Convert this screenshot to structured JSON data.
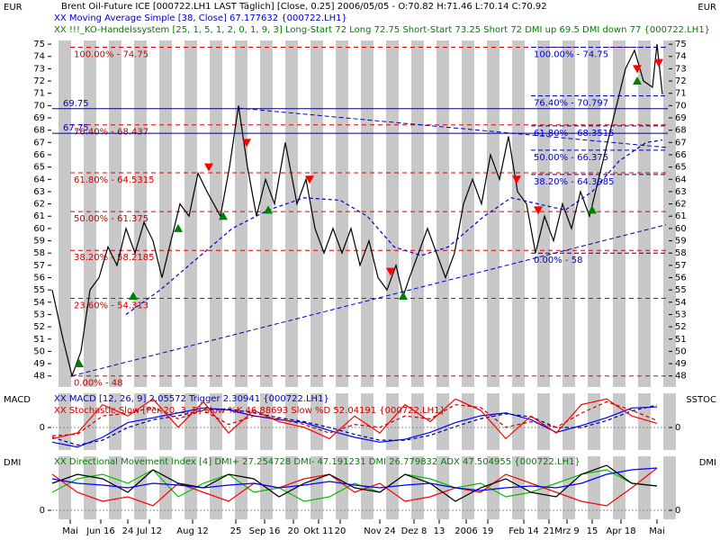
{
  "chart_data": [
    {
      "type": "line",
      "title": "Brent Oil-Future  ICE [000722.LH1 LAST Täglich] [Close, 0.25] 2006/05/05 - O:70.82 H:71.46 L:70.14 C:70.92",
      "legend_texts": [
        "XX Moving Average Simple [38, Close] 67.177632 {000722.LH1}",
        "XX !!!_KO-Handelssystem [25, 1, 5, 1, 2, 0, 1, 9, 3] Long-Start 72 Long 72.75 Short-Start 73.25 Short 72 DMI up 69.5 DMI down 77 {000722.LH1}"
      ],
      "y_label": "EUR",
      "xlim": [
        0,
        342
      ],
      "ylim": [
        47.1,
        75.3
      ],
      "yticks": [
        48,
        49,
        50,
        51,
        52,
        53,
        54,
        55,
        56,
        57,
        58,
        59,
        60,
        61,
        62,
        63,
        64,
        65,
        66,
        67,
        68,
        69,
        70,
        71,
        72,
        73,
        74,
        75
      ],
      "series": [
        {
          "color": "#000000",
          "x": [
            0,
            6,
            11,
            16,
            21,
            26,
            31,
            36,
            41,
            46,
            51,
            56,
            61,
            66,
            71,
            76,
            81,
            86,
            93.5,
            98.5,
            103.5,
            108.5,
            113.5,
            118.5,
            123.5,
            129.5,
            136,
            141,
            146,
            151,
            156,
            161,
            166,
            171,
            176,
            181,
            186,
            191,
            195,
            198.5,
            203.5,
            208.5,
            213.5,
            218.5,
            223.5,
            228.5,
            233.5,
            238.5,
            243.5,
            248.5,
            253.5,
            258.5,
            263.5,
            268.5,
            273.5,
            278.5,
            283.5,
            288.5,
            293.5,
            298.5,
            303.5,
            308.5,
            313.5,
            318.5,
            323.5,
            328.5,
            333.5,
            336,
            339
          ],
          "values": [
            55,
            51,
            48,
            50,
            55,
            56,
            58.5,
            57,
            60,
            58,
            60.5,
            59,
            56,
            59,
            62,
            61,
            64.5,
            63,
            61,
            65,
            70,
            65,
            61,
            64,
            62,
            67,
            62,
            64,
            60,
            58,
            60,
            58,
            60,
            57,
            59,
            56,
            55,
            57,
            54.5,
            56,
            58,
            60,
            58,
            56,
            58,
            62,
            64,
            62,
            66,
            64,
            67.5,
            63,
            62,
            58,
            61,
            59,
            62,
            60,
            63,
            61,
            64,
            67,
            70,
            73,
            74.5,
            72,
            71.5,
            75,
            70.92
          ]
        },
        {
          "color": "#0000cc",
          "dashed": true,
          "x": [
            41,
            60,
            80,
            100,
            120,
            140,
            160,
            175,
            190,
            205,
            220,
            240,
            255,
            270,
            285,
            300,
            315,
            330,
            339
          ],
          "values": [
            53,
            55,
            57.5,
            60,
            61.5,
            62.5,
            62.3,
            61,
            58.5,
            57.8,
            58.5,
            61,
            62.5,
            62,
            61.5,
            63,
            65.5,
            67,
            67.2
          ]
        }
      ],
      "trendlines": [
        {
          "x": [
            11,
            341
          ],
          "y": [
            48,
            60.3
          ]
        },
        {
          "x": [
            103.5,
            341
          ],
          "y": [
            69.8,
            66.6
          ]
        }
      ],
      "hlines": [
        69.75,
        67.75
      ],
      "fib_left": [
        {
          "label": "100.00% - 74.75",
          "level": 74.75
        },
        {
          "label": "76.40% - 68.437",
          "level": 68.437
        },
        {
          "label": "61.80% - 64.5315",
          "level": 64.5315
        },
        {
          "label": "50.00% - 61.375",
          "level": 61.375
        },
        {
          "label": "38.20% - 58.2185",
          "level": 58.2185
        },
        {
          "label": "23.60% - 54.313",
          "level": 54.313
        },
        {
          "label": "0.00% - 48",
          "level": 48
        }
      ],
      "fib_right": [
        {
          "label": "100.00% - 74.75",
          "level": 74.75
        },
        {
          "label": "76.40% - 70.797",
          "level": 70.797
        },
        {
          "label": "61.80% - 68.3515",
          "level": 68.3515
        },
        {
          "label": "50.00% - 66.375",
          "level": 66.375
        },
        {
          "label": "38.20% - 64.3985",
          "level": 64.3985
        },
        {
          "label": "0.00% - 58",
          "level": 58
        }
      ],
      "buy_signals": {
        "color": "#008000",
        "x": [
          15,
          45,
          70,
          95,
          120,
          195,
          300,
          325
        ],
        "y": [
          49,
          54.5,
          60,
          61,
          61.5,
          54.5,
          61.5,
          72
        ]
      },
      "sell_signals": {
        "color": "#ff0000",
        "x": [
          87,
          108,
          143,
          188,
          258,
          270,
          325,
          337
        ],
        "y": [
          65,
          67,
          64,
          56.5,
          64,
          61.5,
          73,
          73.5
        ]
      }
    },
    {
      "type": "line",
      "y_label": "MACD",
      "y2_label": "SSTOC",
      "legend_texts": [
        "XX MACD [12, 26, 9] 2.05572 Trigger 2.30941 {000722.LH1}",
        "XX Stochastic Slow [Per:20, 3, 5] Slow %K 46.88693 Slow %D 52.04191 {000722.LH1}"
      ],
      "xlim": [
        0,
        342
      ],
      "ylim": [
        -2.3,
        3.5
      ],
      "yticks": [
        0
      ],
      "y2lim": [
        0,
        100
      ],
      "x": [
        0,
        14,
        28,
        42,
        56,
        70,
        84,
        98,
        112,
        126,
        140,
        154,
        168,
        182,
        196,
        210,
        224,
        238,
        252,
        266,
        280,
        294,
        308,
        322,
        336
      ],
      "series": [
        {
          "color": "#0000ff",
          "values": [
            -1.5,
            -2,
            -1,
            0.5,
            1,
            1.5,
            2,
            1.8,
            1.2,
            0.8,
            0.5,
            -0.3,
            -1,
            -1.5,
            -1.2,
            -0.5,
            0.5,
            1.2,
            1.5,
            0.8,
            -0.5,
            0.2,
            1,
            2,
            2.1
          ]
        },
        {
          "color": "#000080",
          "dashed": true,
          "values": [
            -1,
            -1.8,
            -1.3,
            0,
            0.8,
            1.2,
            1.8,
            1.9,
            1.5,
            1,
            0.6,
            0,
            -0.7,
            -1.3,
            -1.3,
            -0.8,
            0.1,
            0.9,
            1.4,
            1.1,
            0,
            0,
            0.7,
            1.7,
            2.3
          ]
        },
        {
          "color": "#ff0000",
          "axis": "y2",
          "values": [
            20,
            30,
            80,
            60,
            90,
            40,
            85,
            30,
            70,
            50,
            40,
            20,
            60,
            30,
            80,
            50,
            90,
            70,
            20,
            60,
            30,
            80,
            90,
            60,
            47
          ]
        },
        {
          "color": "#cc0000",
          "axis": "y2",
          "dashed": true,
          "values": [
            25,
            28,
            60,
            65,
            75,
            55,
            70,
            45,
            60,
            55,
            45,
            30,
            45,
            40,
            60,
            55,
            80,
            75,
            40,
            50,
            40,
            65,
            85,
            70,
            52
          ]
        }
      ]
    },
    {
      "type": "line",
      "y_label": "DMI",
      "legend_texts": [
        "XX Directional Movement Index [4] DMI+ 27.254728 DMI- 47.191231 DMI 26.779832 ADX 47.504955 {000722.LH1}"
      ],
      "xlim": [
        0,
        342
      ],
      "ylim": [
        -10,
        60
      ],
      "yticks": [
        0
      ],
      "xticks": [
        {
          "value": 10,
          "label": "Mai"
        },
        {
          "value": 27,
          "label": "Jun 16"
        },
        {
          "value": 42,
          "label": "24"
        },
        {
          "value": 54,
          "label": "Jul 12"
        },
        {
          "value": 78,
          "label": "Aug 12"
        },
        {
          "value": 102,
          "label": "25"
        },
        {
          "value": 118,
          "label": "Sep 16"
        },
        {
          "value": 134,
          "label": "20"
        },
        {
          "value": 148,
          "label": "Okt 11"
        },
        {
          "value": 160,
          "label": "20"
        },
        {
          "value": 182,
          "label": "Nov 24"
        },
        {
          "value": 201,
          "label": "Dez 8"
        },
        {
          "value": 215,
          "label": "13"
        },
        {
          "value": 230,
          "label": "2006"
        },
        {
          "value": 242,
          "label": "19"
        },
        {
          "value": 262,
          "label": "Feb 14"
        },
        {
          "value": 276,
          "label": "21"
        },
        {
          "value": 286,
          "label": "Mrz 9"
        },
        {
          "value": 300,
          "label": "15"
        },
        {
          "value": 316,
          "label": "Apr 18"
        },
        {
          "value": 336,
          "label": "Mai"
        }
      ],
      "x": [
        0,
        14,
        28,
        42,
        56,
        70,
        84,
        98,
        112,
        126,
        140,
        154,
        168,
        182,
        196,
        210,
        224,
        238,
        252,
        266,
        280,
        294,
        308,
        322,
        336
      ],
      "series": [
        {
          "color": "#00c000",
          "values": [
            20,
            35,
            40,
            30,
            45,
            15,
            30,
            40,
            20,
            25,
            10,
            15,
            30,
            20,
            40,
            35,
            25,
            30,
            15,
            20,
            30,
            40,
            45,
            30,
            27
          ]
        },
        {
          "color": "#ff0000",
          "values": [
            40,
            20,
            10,
            15,
            5,
            30,
            20,
            10,
            30,
            25,
            35,
            40,
            20,
            30,
            10,
            15,
            25,
            20,
            40,
            30,
            20,
            10,
            5,
            25,
            47
          ]
        },
        {
          "color": "#000000",
          "values": [
            30,
            40,
            35,
            20,
            45,
            30,
            25,
            40,
            35,
            15,
            30,
            40,
            25,
            20,
            40,
            30,
            10,
            25,
            35,
            20,
            15,
            40,
            50,
            30,
            27
          ]
        },
        {
          "color": "#0000ff",
          "values": [
            35,
            30,
            28,
            25,
            30,
            28,
            25,
            28,
            30,
            25,
            28,
            32,
            28,
            25,
            28,
            30,
            25,
            22,
            25,
            27,
            25,
            30,
            40,
            45,
            47
          ]
        }
      ]
    }
  ]
}
